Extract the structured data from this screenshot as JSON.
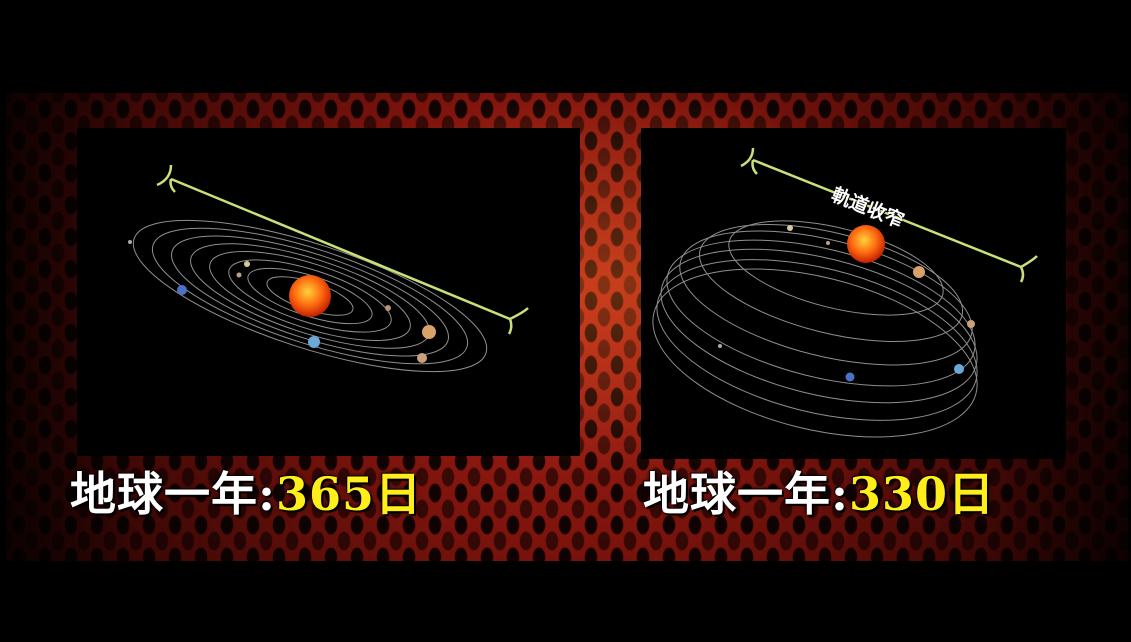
{
  "left_panel": {
    "caption_label": "地球一年:",
    "caption_value": "365日"
  },
  "right_panel": {
    "caption_label": "地球一年:",
    "caption_value": "330日",
    "orbit_label": "軌道收窄"
  },
  "colors": {
    "caption_white": "#ffffff",
    "caption_yellow": "#ffee1a",
    "measure_line": "#c8e07a",
    "background_red": "#b52418"
  }
}
